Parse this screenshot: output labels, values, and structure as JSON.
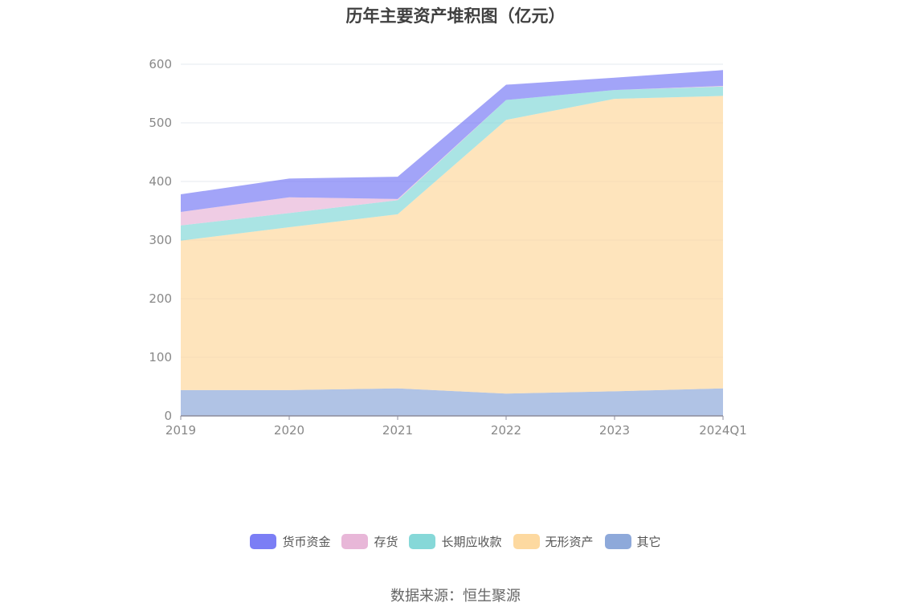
{
  "title": "历年主要资产堆积图（亿元）",
  "source": "数据来源：恒生聚源",
  "colors": {
    "货币资金": "#7b7ef5",
    "存货": "#e8b7d8",
    "长期应收款": "#86d8d8",
    "无形资产": "#fdd9a0",
    "其它": "#8ea9da"
  },
  "chart_data": {
    "type": "area",
    "stacked": true,
    "x": [
      "2019",
      "2020",
      "2021",
      "2022",
      "2023",
      "2024Q1"
    ],
    "yticks": [
      "0",
      "100",
      "200",
      "300",
      "400",
      "500",
      "600"
    ],
    "ylim": [
      0,
      600
    ],
    "grid": true,
    "legend_position": "bottom",
    "series": [
      {
        "name": "其它",
        "values": [
          44,
          44,
          47,
          38,
          42,
          47
        ]
      },
      {
        "name": "无形资产",
        "values": [
          255,
          278,
          297,
          467,
          499,
          499
        ]
      },
      {
        "name": "长期应收款",
        "values": [
          26,
          24,
          24,
          34,
          15,
          16
        ]
      },
      {
        "name": "存货",
        "values": [
          23,
          27,
          2,
          0,
          0,
          1
        ]
      },
      {
        "name": "货币资金",
        "values": [
          30,
          32,
          38,
          26,
          21,
          27
        ]
      }
    ],
    "legend": [
      "货币资金",
      "存货",
      "长期应收款",
      "无形资产",
      "其它"
    ]
  }
}
